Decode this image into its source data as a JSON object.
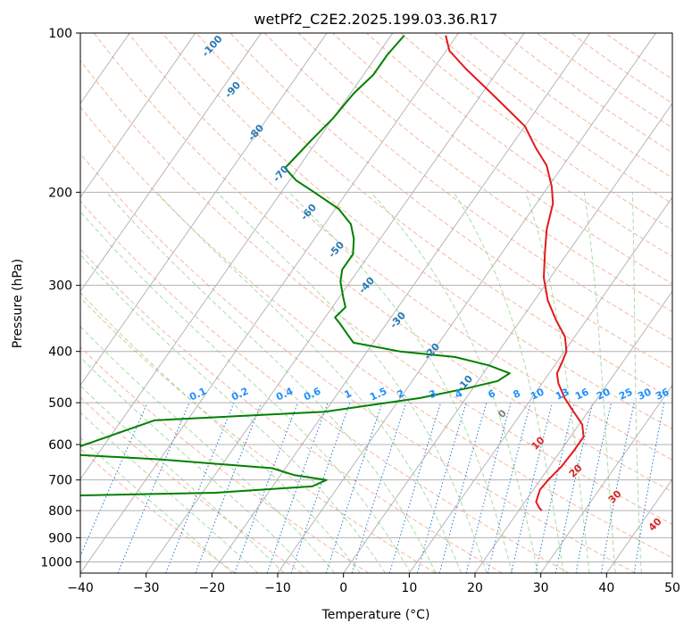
{
  "chart_data": {
    "type": "line",
    "subtype": "skew-t log-p diagram",
    "title": "wetPf2_C2E2.2025.199.03.36.R17",
    "xlabel": "Temperature (°C)",
    "ylabel": "Pressure (hPa)",
    "x_scale": "linear",
    "y_scale": "log (inverted)",
    "xlim": [
      -40,
      50
    ],
    "ylim": [
      1050,
      100
    ],
    "x_ticks": [
      -40,
      -30,
      -20,
      -10,
      0,
      10,
      20,
      30,
      40,
      50
    ],
    "y_ticks": [
      100,
      200,
      300,
      400,
      500,
      600,
      700,
      800,
      900,
      1000
    ],
    "grid": true,
    "colors": {
      "temperature": "#e31a1c",
      "dewpoint": "#008000",
      "isotherm": "#a6a6a6",
      "grid": "#b0b0b0",
      "dry_adiabat": "#f4a582",
      "moist_adiabat": "#a1d99b",
      "mixing_ratio": "#1f78d4",
      "cape_path": "#d9c29a",
      "lcl_label": "#808080"
    },
    "series": [
      {
        "name": "Temperature",
        "color": "#e31a1c",
        "points": [
          [
            23.5,
            800
          ],
          [
            22.8,
            790
          ],
          [
            21.7,
            770
          ],
          [
            21.0,
            730
          ],
          [
            21.2,
            700
          ],
          [
            21.8,
            660
          ],
          [
            22.0,
            620
          ],
          [
            22.0,
            580
          ],
          [
            20.5,
            550
          ],
          [
            17.8,
            520
          ],
          [
            15.0,
            490
          ],
          [
            12.5,
            460
          ],
          [
            11.2,
            440
          ],
          [
            10.8,
            420
          ],
          [
            10.3,
            400
          ],
          [
            8.5,
            375
          ],
          [
            5.5,
            350
          ],
          [
            2.0,
            320
          ],
          [
            -1.0,
            290
          ],
          [
            -3.5,
            260
          ],
          [
            -5.7,
            235
          ],
          [
            -7.5,
            210
          ],
          [
            -9.5,
            195
          ],
          [
            -12.5,
            178
          ],
          [
            -16.0,
            165
          ],
          [
            -20.0,
            150
          ],
          [
            -25.0,
            138
          ],
          [
            -30.0,
            127
          ],
          [
            -35.0,
            117
          ],
          [
            -39.5,
            108
          ],
          [
            -41.7,
            101
          ]
        ]
      },
      {
        "name": "Dewpoint",
        "color": "#008000",
        "points": [
          [
            -55.0,
            800
          ],
          [
            -52.0,
            790
          ],
          [
            -48.0,
            770
          ],
          [
            -56.0,
            752
          ],
          [
            -28.0,
            740
          ],
          [
            -14.0,
            720
          ],
          [
            -12.5,
            700
          ],
          [
            -18.0,
            685
          ],
          [
            -22.0,
            665
          ],
          [
            -40.0,
            640
          ],
          [
            -56.0,
            625
          ],
          [
            -45.0,
            540
          ],
          [
            -20.0,
            520
          ],
          [
            -7.0,
            490
          ],
          [
            -1.0,
            470
          ],
          [
            3.0,
            455
          ],
          [
            4.0,
            440
          ],
          [
            0.0,
            425
          ],
          [
            -6.0,
            410
          ],
          [
            -15.0,
            400
          ],
          [
            -23.0,
            385
          ],
          [
            -25.0,
            370
          ],
          [
            -27.0,
            355
          ],
          [
            -28.5,
            345
          ],
          [
            -28.0,
            330
          ],
          [
            -29.5,
            315
          ],
          [
            -31.5,
            295
          ],
          [
            -32.5,
            280
          ],
          [
            -32.5,
            262
          ],
          [
            -34.0,
            245
          ],
          [
            -36.0,
            230
          ],
          [
            -39.5,
            215
          ],
          [
            -45.0,
            200
          ],
          [
            -49.0,
            190
          ],
          [
            -52.0,
            180
          ],
          [
            -51.5,
            170
          ],
          [
            -51.0,
            160
          ],
          [
            -50.0,
            145
          ],
          [
            -49.5,
            130
          ],
          [
            -48.5,
            120
          ],
          [
            -48.5,
            110
          ],
          [
            -48.0,
            101
          ]
        ]
      }
    ],
    "isopleth_labels": {
      "dry_adiabat_C": [
        "-100",
        "-90",
        "-80",
        "-70",
        "-60",
        "-50",
        "-40",
        "-30",
        "-20",
        "-10"
      ],
      "mixing_ratio_gkg": [
        "0.1",
        "0.2",
        "0.4",
        "0.6",
        "1",
        "1.5",
        "2",
        "3",
        "4",
        "6",
        "8",
        "10",
        "13",
        "16",
        "20",
        "25",
        "30",
        "36"
      ],
      "moist_adiabat_C": [
        "0",
        "10",
        "20",
        "30",
        "40"
      ]
    }
  }
}
